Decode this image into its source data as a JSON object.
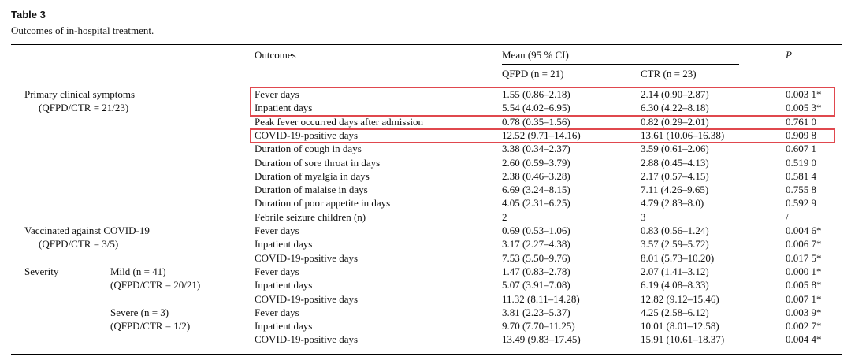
{
  "header": {
    "label": "Table 3",
    "caption": "Outcomes of in-hospital treatment."
  },
  "table": {
    "columns": {
      "outcomes": "Outcomes",
      "mean": "Mean (95 % CI)",
      "qfpd": "QFPD (n = 21)",
      "ctr": "CTR (n = 23)",
      "p": "P"
    },
    "rows": [
      {
        "group": "Primary clinical symptoms",
        "outcome": "Fever days",
        "qfpd": "1.55 (0.86–2.18)",
        "ctr": "2.14 (0.90–2.87)",
        "p": "0.003 1*"
      },
      {
        "group": "(QFPD/CTR = 21/23)",
        "outcome": "Inpatient days",
        "qfpd": "5.54 (4.02–6.95)",
        "ctr": "6.30 (4.22–8.18)",
        "p": "0.005 3*"
      },
      {
        "outcome": "Peak fever occurred days after admission",
        "qfpd": "0.78 (0.35–1.56)",
        "ctr": "0.82 (0.29–2.01)",
        "p": "0.761 0"
      },
      {
        "outcome": "COVID-19-positive days",
        "qfpd": "12.52 (9.71–14.16)",
        "ctr": "13.61 (10.06–16.38)",
        "p": "0.909 8"
      },
      {
        "outcome": "Duration of cough in days",
        "qfpd": "3.38 (0.34–2.37)",
        "ctr": "3.59 (0.61–2.06)",
        "p": "0.607 1"
      },
      {
        "outcome": "Duration of sore throat in days",
        "qfpd": "2.60 (0.59–3.79)",
        "ctr": "2.88 (0.45–4.13)",
        "p": "0.519 0"
      },
      {
        "outcome": "Duration of myalgia in days",
        "qfpd": "2.38 (0.46–3.28)",
        "ctr": "2.17 (0.57–4.15)",
        "p": "0.581 4"
      },
      {
        "outcome": "Duration of malaise in days",
        "qfpd": "6.69 (3.24–8.15)",
        "ctr": "7.11 (4.26–9.65)",
        "p": "0.755 8"
      },
      {
        "outcome": "Duration of poor appetite in days",
        "qfpd": "4.05 (2.31–6.25)",
        "ctr": "4.79 (2.83–8.0)",
        "p": "0.592 9"
      },
      {
        "outcome": "Febrile seizure children (n)",
        "qfpd": "2",
        "ctr": "3",
        "p": "/"
      },
      {
        "group": "Vaccinated against COVID-19",
        "outcome": "Fever days",
        "qfpd": "0.69 (0.53–1.06)",
        "ctr": "0.83 (0.56–1.24)",
        "p": "0.004 6*"
      },
      {
        "group": "(QFPD/CTR = 3/5)",
        "outcome": "Inpatient days",
        "qfpd": "3.17 (2.27–4.38)",
        "ctr": "3.57 (2.59–5.72)",
        "p": "0.006 7*"
      },
      {
        "outcome": "COVID-19-positive days",
        "qfpd": "7.53 (5.50–9.76)",
        "ctr": "8.01 (5.73–10.20)",
        "p": "0.017 5*"
      },
      {
        "group": "Severity",
        "sub": "Mild (n = 41)",
        "outcome": "Fever days",
        "qfpd": "1.47 (0.83–2.78)",
        "ctr": "2.07 (1.41–3.12)",
        "p": "0.000 1*"
      },
      {
        "sub": "(QFPD/CTR = 20/21)",
        "outcome": "Inpatient days",
        "qfpd": "5.07 (3.91–7.08)",
        "ctr": "6.19 (4.08–8.33)",
        "p": "0.005 8*"
      },
      {
        "outcome": "COVID-19-positive days",
        "qfpd": "11.32 (8.11–14.28)",
        "ctr": "12.82 (9.12–15.46)",
        "p": "0.007 1*"
      },
      {
        "sub": "Severe (n = 3)",
        "outcome": "Fever days",
        "qfpd": "3.81 (2.23–5.37)",
        "ctr": "4.25 (2.58–6.12)",
        "p": "0.003 9*"
      },
      {
        "sub": "(QFPD/CTR = 1/2)",
        "outcome": "Inpatient days",
        "qfpd": "9.70 (7.70–11.25)",
        "ctr": "10.01 (8.01–12.58)",
        "p": "0.002 7*"
      },
      {
        "outcome": "COVID-19-positive days",
        "qfpd": "13.49 (9.83–17.45)",
        "ctr": "15.91 (10.61–18.37)",
        "p": "0.004 4*"
      }
    ]
  }
}
